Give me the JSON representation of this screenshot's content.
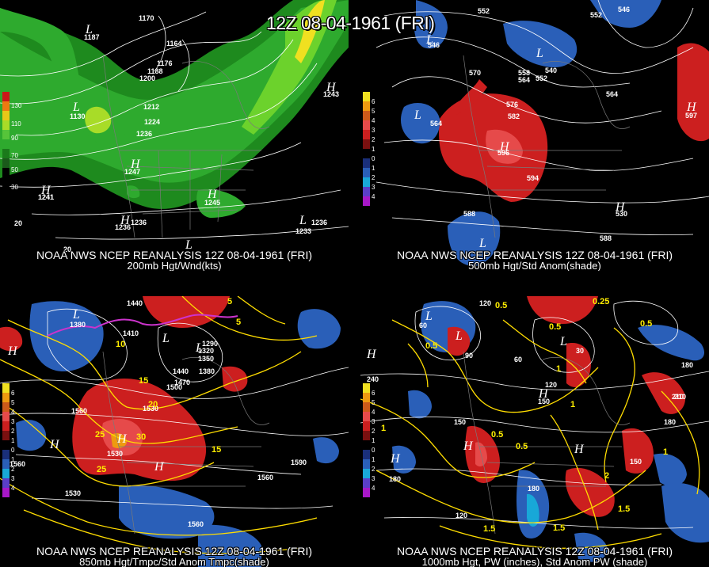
{
  "title": "12Z 08-04-1961 (FRI)",
  "colors": {
    "background": "#000000",
    "contour": "#ffffff",
    "temperature_contour": "#ffdd00",
    "jet_light": "#2eaa2e",
    "jet_dark": "#1b7a1b",
    "anomaly_positive": "#cc1f1f",
    "anomaly_negative": "#2a5fb8",
    "freezing_line": "#cc33cc"
  },
  "panels": [
    {
      "id": "200mb",
      "caption_line1": "NOAA NWS NCEP REANALYSIS 12Z 08-04-1961 (FRI)",
      "caption_line2": "200mb Hgt/Wnd(kts)",
      "legend": [
        "130",
        "110",
        "90",
        "70",
        "50",
        "30"
      ],
      "contour_labels": [
        "1170",
        "1164",
        "1176",
        "1188",
        "1200",
        "1212",
        "1224",
        "1236",
        "1236",
        "1247",
        "1245",
        "1241",
        "1236",
        "1236",
        "1233",
        "1130",
        "1187",
        "1243",
        "1241"
      ],
      "pressure_centers": [
        "L",
        "L",
        "H",
        "H",
        "H",
        "H",
        "L",
        "L",
        "H"
      ],
      "extra_labels": [
        "20",
        "20"
      ]
    },
    {
      "id": "500mb",
      "caption_line1": "NOAA NWS NCEP REANALYSIS 12Z 08-04-1961 (FRI)",
      "caption_line2": "500mb Hgt/Std Anom(shade)",
      "legend": [
        "6",
        "5",
        "4",
        "3",
        "2",
        "1",
        "0",
        "1",
        "2",
        "3",
        "4",
        "5"
      ],
      "contour_labels": [
        "552",
        "552",
        "546",
        "546",
        "570",
        "558",
        "564",
        "552",
        "540",
        "576",
        "582",
        "564",
        "564",
        "594",
        "588",
        "588",
        "596",
        "597",
        "530"
      ],
      "pressure_centers": [
        "L",
        "L",
        "L",
        "H",
        "H",
        "H",
        "L"
      ]
    },
    {
      "id": "850mb",
      "caption_line1": "NOAA NWS NCEP REANALYSIS 12Z 08-04-1961 (FRI)",
      "caption_line2": "850mb Hgt/Tmpc/Std Anom Tmpc(shade)",
      "legend": [
        "6",
        "5",
        "4",
        "3",
        "2",
        "1",
        "0",
        "1",
        "2",
        "3",
        "4",
        "5"
      ],
      "contour_labels": [
        "1440",
        "1380",
        "1410",
        "1290",
        "1320",
        "1350",
        "1380",
        "1440",
        "1470",
        "1500",
        "1530",
        "1530",
        "1560",
        "1560",
        "1590",
        "1560",
        "1530",
        "1560"
      ],
      "temp_labels": [
        "10",
        "15",
        "20",
        "25",
        "30",
        "25",
        "15",
        "5",
        "5"
      ],
      "pressure_centers": [
        "L",
        "L",
        "L",
        "H",
        "H",
        "H",
        "H"
      ]
    },
    {
      "id": "1000mb",
      "caption_line1": "NOAA NWS NCEP REANALYSIS 12Z 08-04-1961 (FRI)",
      "caption_line2": "1000mb Hgt, PW (inches), Std Anom PW (shade)",
      "legend": [
        "6",
        "5",
        "4",
        "3",
        "2",
        "1",
        "0",
        "1",
        "2",
        "3",
        "4",
        "5"
      ],
      "contour_labels": [
        "120",
        "60",
        "90",
        "60",
        "30",
        "120",
        "150",
        "150",
        "180",
        "210",
        "180",
        "150",
        "120",
        "180",
        "240",
        "180",
        "210"
      ],
      "pw_labels": [
        "0.5",
        "0.25",
        "0.5",
        "0.5",
        "0.5",
        "1",
        "1",
        "0.5",
        "0.5",
        "1",
        "1.5",
        "1.5",
        "2",
        "1.5",
        "1"
      ],
      "pressure_centers": [
        "L",
        "L",
        "L",
        "H",
        "H",
        "H",
        "H",
        "H"
      ]
    }
  ]
}
